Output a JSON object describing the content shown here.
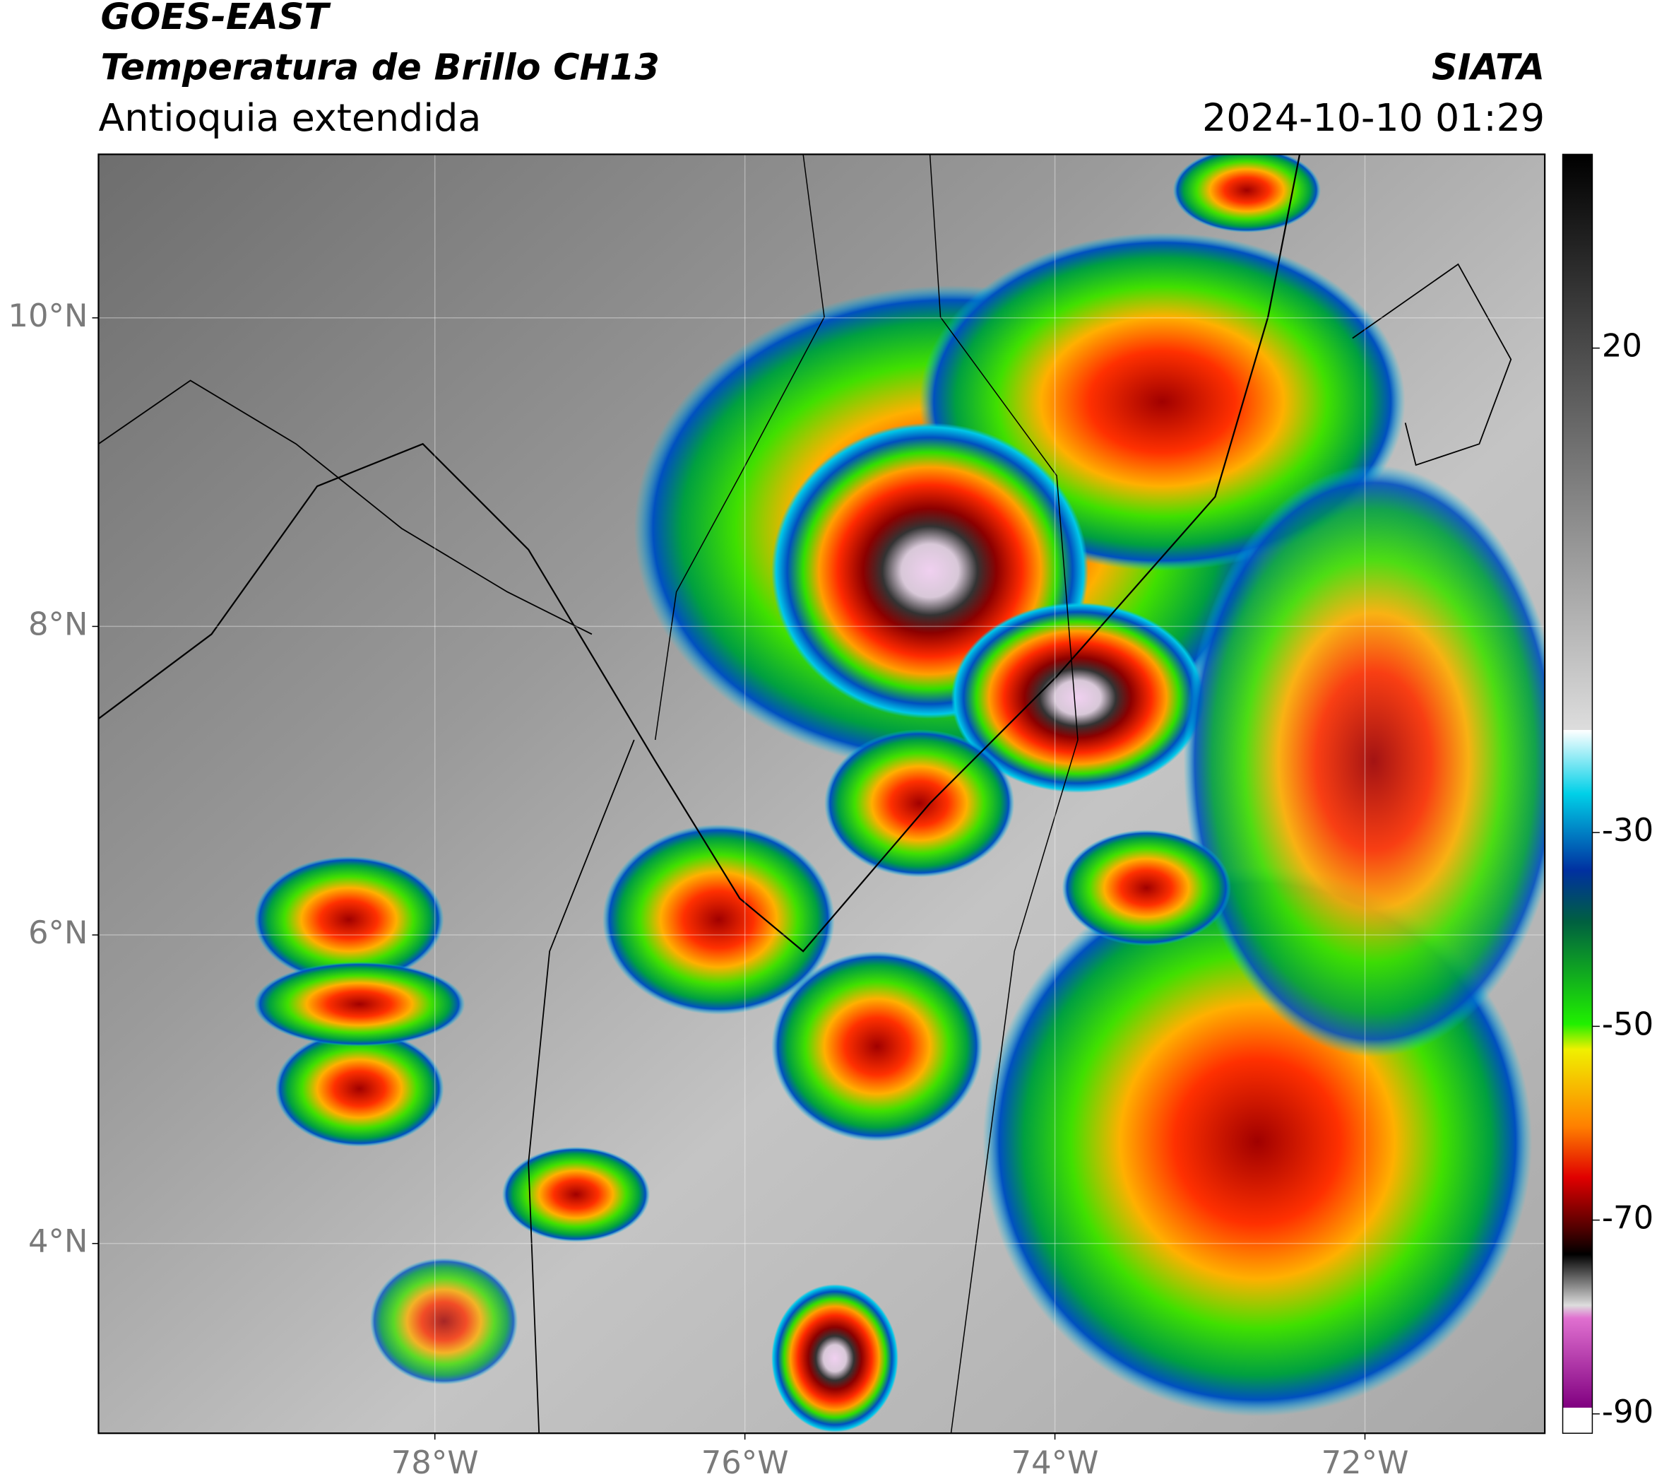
{
  "header": {
    "title": "GOES-EAST",
    "subtitle": "Temperatura de Brillo CH13",
    "region": "Antioquia extendida",
    "source": "SIATA",
    "datetime": "2024-10-10 01:29"
  },
  "map": {
    "xlim": [
      -80.17,
      -70.84
    ],
    "ylim": [
      2.77,
      11.06
    ],
    "xticks": [
      {
        "value": -78,
        "label": "78°W"
      },
      {
        "value": -76,
        "label": "76°W"
      },
      {
        "value": -74,
        "label": "74°W"
      },
      {
        "value": -72,
        "label": "72°W"
      }
    ],
    "yticks": [
      {
        "value": 4,
        "label": "4°N"
      },
      {
        "value": 6,
        "label": "6°N"
      },
      {
        "value": 8,
        "label": "8°N"
      },
      {
        "value": 10,
        "label": "10°N"
      }
    ],
    "grid": true
  },
  "colorbar": {
    "lim": [
      -92,
      40
    ],
    "ticks": [
      20,
      -30,
      -50,
      -70,
      -90
    ]
  }
}
